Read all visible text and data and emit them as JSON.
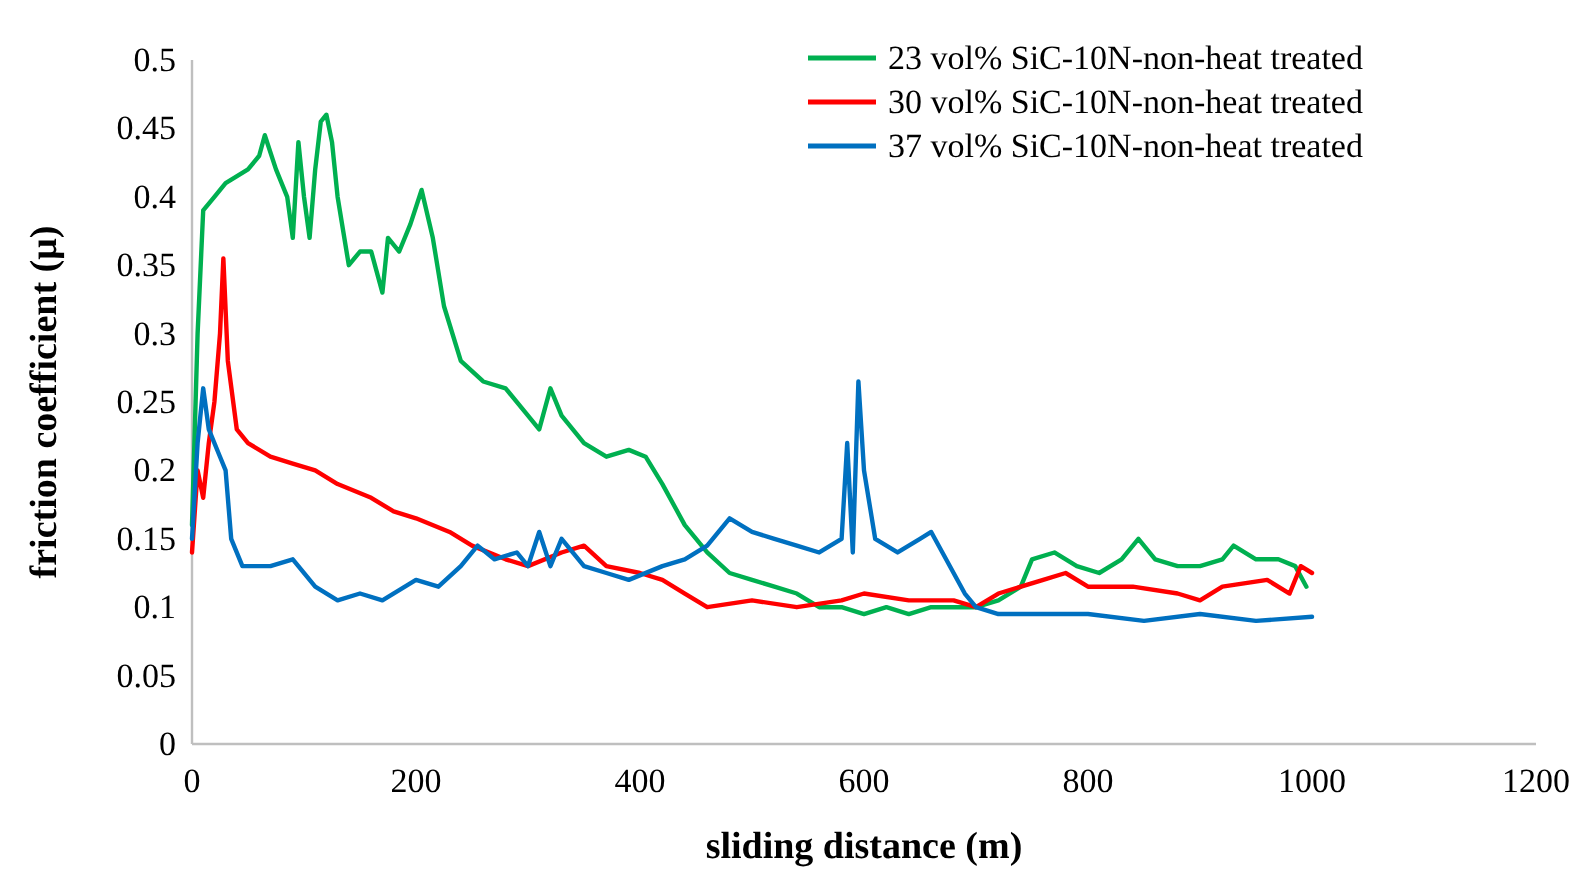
{
  "chart_data": {
    "type": "line",
    "xlabel": "sliding distance (m)",
    "ylabel": "friction coefficient (μ)",
    "xlim": [
      0,
      1200
    ],
    "xticks": [
      0,
      200,
      400,
      600,
      800,
      1000,
      1200
    ],
    "ylim": [
      0,
      0.5
    ],
    "yticks": [
      0,
      0.05,
      0.1,
      0.15,
      0.2,
      0.25,
      0.3,
      0.35,
      0.4,
      0.45,
      0.5
    ],
    "grid": false,
    "legend": "top right",
    "marker": "none",
    "line_style": "solid",
    "series": [
      {
        "name": "23 vol% SiC-10N-non-heat treated",
        "color": "#00b050",
        "x": [
          0,
          5,
          10,
          20,
          30,
          50,
          60,
          65,
          75,
          85,
          90,
          95,
          100,
          105,
          110,
          115,
          120,
          125,
          130,
          140,
          150,
          160,
          170,
          175,
          185,
          195,
          205,
          215,
          225,
          240,
          260,
          280,
          300,
          310,
          320,
          330,
          350,
          370,
          390,
          405,
          420,
          440,
          460,
          480,
          500,
          520,
          540,
          560,
          580,
          600,
          620,
          640,
          660,
          680,
          700,
          720,
          740,
          750,
          770,
          790,
          810,
          830,
          845,
          860,
          880,
          900,
          920,
          930,
          950,
          970,
          985,
          995
        ],
        "values": [
          0.16,
          0.3,
          0.39,
          0.4,
          0.41,
          0.42,
          0.43,
          0.445,
          0.42,
          0.4,
          0.37,
          0.44,
          0.4,
          0.37,
          0.42,
          0.455,
          0.46,
          0.44,
          0.4,
          0.35,
          0.36,
          0.36,
          0.33,
          0.37,
          0.36,
          0.38,
          0.405,
          0.37,
          0.32,
          0.28,
          0.265,
          0.26,
          0.24,
          0.23,
          0.26,
          0.24,
          0.22,
          0.21,
          0.215,
          0.21,
          0.19,
          0.16,
          0.14,
          0.125,
          0.12,
          0.115,
          0.11,
          0.1,
          0.1,
          0.095,
          0.1,
          0.095,
          0.1,
          0.1,
          0.1,
          0.105,
          0.115,
          0.135,
          0.14,
          0.13,
          0.125,
          0.135,
          0.15,
          0.135,
          0.13,
          0.13,
          0.135,
          0.145,
          0.135,
          0.135,
          0.13,
          0.115
        ]
      },
      {
        "name": "30 vol% SiC-10N-non-heat treated",
        "color": "#ff0000",
        "x": [
          0,
          5,
          10,
          15,
          20,
          25,
          28,
          32,
          40,
          50,
          70,
          90,
          110,
          130,
          160,
          180,
          200,
          230,
          250,
          280,
          300,
          330,
          350,
          370,
          400,
          420,
          440,
          460,
          500,
          540,
          580,
          600,
          640,
          680,
          700,
          720,
          760,
          780,
          800,
          840,
          880,
          900,
          920,
          960,
          980,
          990,
          1000
        ],
        "values": [
          0.14,
          0.2,
          0.18,
          0.22,
          0.25,
          0.3,
          0.355,
          0.28,
          0.23,
          0.22,
          0.21,
          0.205,
          0.2,
          0.19,
          0.18,
          0.17,
          0.165,
          0.155,
          0.145,
          0.135,
          0.13,
          0.14,
          0.145,
          0.13,
          0.125,
          0.12,
          0.11,
          0.1,
          0.105,
          0.1,
          0.105,
          0.11,
          0.105,
          0.105,
          0.1,
          0.11,
          0.12,
          0.125,
          0.115,
          0.115,
          0.11,
          0.105,
          0.115,
          0.12,
          0.11,
          0.13,
          0.125
        ]
      },
      {
        "name": "37 vol% SiC-10N-non-heat treated",
        "color": "#0070c0",
        "x": [
          0,
          5,
          10,
          15,
          25,
          30,
          35,
          45,
          70,
          90,
          110,
          130,
          150,
          170,
          200,
          220,
          240,
          255,
          270,
          290,
          300,
          310,
          320,
          330,
          350,
          370,
          390,
          420,
          440,
          460,
          480,
          500,
          520,
          540,
          560,
          580,
          585,
          590,
          595,
          600,
          610,
          630,
          650,
          660,
          670,
          690,
          700,
          720,
          760,
          800,
          850,
          900,
          950,
          1000
        ],
        "values": [
          0.15,
          0.22,
          0.26,
          0.23,
          0.21,
          0.2,
          0.15,
          0.13,
          0.13,
          0.135,
          0.115,
          0.105,
          0.11,
          0.105,
          0.12,
          0.115,
          0.13,
          0.145,
          0.135,
          0.14,
          0.13,
          0.155,
          0.13,
          0.15,
          0.13,
          0.125,
          0.12,
          0.13,
          0.135,
          0.145,
          0.165,
          0.155,
          0.15,
          0.145,
          0.14,
          0.15,
          0.22,
          0.14,
          0.265,
          0.2,
          0.15,
          0.14,
          0.15,
          0.155,
          0.14,
          0.11,
          0.1,
          0.095,
          0.095,
          0.095,
          0.09,
          0.095,
          0.09,
          0.093
        ]
      }
    ]
  }
}
